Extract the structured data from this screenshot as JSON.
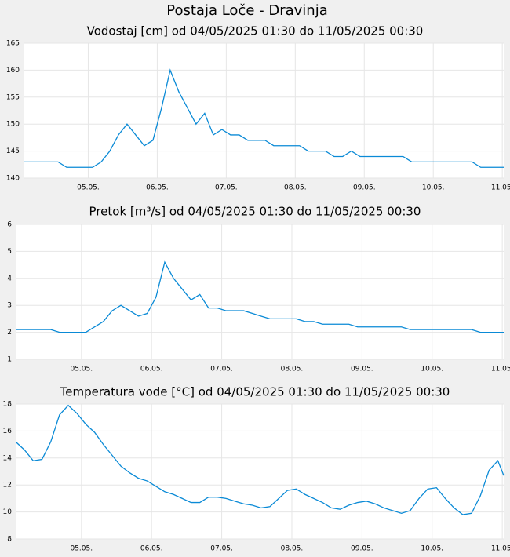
{
  "title": "Postaja Loče - Dravinja",
  "chart_data": [
    {
      "type": "line",
      "title": "Vodostaj [cm] od 04/05/2025 01:30 do 11/05/2025 00:30",
      "color": "#0a8ad6",
      "grid": true,
      "x": [
        "04.05. 01:30",
        "04.05. 04:30",
        "04.05. 07:30",
        "04.05. 10:30",
        "04.05. 13:30",
        "04.05. 16:30",
        "04.05. 19:30",
        "04.05. 22:30",
        "05.05. 01:30",
        "05.05. 04:30",
        "05.05. 07:30",
        "05.05. 10:30",
        "05.05. 13:30",
        "05.05. 16:30",
        "05.05. 19:30",
        "05.05. 22:30",
        "06.05. 01:30",
        "06.05. 04:30",
        "06.05. 07:30",
        "06.05. 10:30",
        "06.05. 13:30",
        "06.05. 16:30",
        "06.05. 19:30",
        "06.05. 22:30",
        "07.05. 01:30",
        "07.05. 04:30",
        "07.05. 07:30",
        "07.05. 10:30",
        "07.05. 13:30",
        "07.05. 16:30",
        "07.05. 19:30",
        "07.05. 22:30",
        "08.05. 01:30",
        "08.05. 04:30",
        "08.05. 07:30",
        "08.05. 10:30",
        "08.05. 13:30",
        "08.05. 16:30",
        "08.05. 19:30",
        "08.05. 22:30",
        "09.05. 01:30",
        "09.05. 04:30",
        "09.05. 07:30",
        "09.05. 10:30",
        "09.05. 13:30",
        "09.05. 16:30",
        "09.05. 19:30",
        "09.05. 22:30",
        "10.05. 01:30",
        "10.05. 04:30",
        "10.05. 07:30",
        "10.05. 10:30",
        "10.05. 13:30",
        "10.05. 16:30",
        "10.05. 19:30",
        "10.05. 22:30",
        "11.05. 00:30"
      ],
      "values": [
        143,
        143,
        143,
        143,
        143,
        142,
        142,
        142,
        142,
        143,
        145,
        148,
        150,
        148,
        146,
        147,
        153,
        160,
        156,
        153,
        150,
        152,
        148,
        149,
        148,
        148,
        147,
        147,
        147,
        146,
        146,
        146,
        146,
        145,
        145,
        145,
        144,
        144,
        145,
        144,
        144,
        144,
        144,
        144,
        144,
        143,
        143,
        143,
        143,
        143,
        143,
        143,
        143,
        142,
        142,
        142,
        142
      ],
      "xlim": [
        "04.05. 01:30",
        "11.05. 00:30"
      ],
      "xticks": [
        {
          "value": "05.05. 00:00",
          "label": "05.05."
        },
        {
          "value": "06.05. 00:00",
          "label": "06.05."
        },
        {
          "value": "07.05. 00:00",
          "label": "07.05."
        },
        {
          "value": "08.05. 00:00",
          "label": "08.05."
        },
        {
          "value": "09.05. 00:00",
          "label": "09.05."
        },
        {
          "value": "10.05. 00:00",
          "label": "10.05."
        },
        {
          "value": "11.05. 00:00",
          "label": "11.05."
        }
      ],
      "ylim": [
        140,
        165
      ],
      "yticks": [
        140,
        145,
        150,
        155,
        160,
        165
      ]
    },
    {
      "type": "line",
      "title": "Pretok [m³/s] od 04/05/2025 01:30 do 11/05/2025 00:30",
      "color": "#0a8ad6",
      "grid": true,
      "x": [
        "04.05. 01:30",
        "04.05. 04:30",
        "04.05. 07:30",
        "04.05. 10:30",
        "04.05. 13:30",
        "04.05. 16:30",
        "04.05. 19:30",
        "04.05. 22:30",
        "05.05. 01:30",
        "05.05. 04:30",
        "05.05. 07:30",
        "05.05. 10:30",
        "05.05. 13:30",
        "05.05. 16:30",
        "05.05. 19:30",
        "05.05. 22:30",
        "06.05. 01:30",
        "06.05. 04:30",
        "06.05. 07:30",
        "06.05. 10:30",
        "06.05. 13:30",
        "06.05. 16:30",
        "06.05. 19:30",
        "06.05. 22:30",
        "07.05. 01:30",
        "07.05. 04:30",
        "07.05. 07:30",
        "07.05. 10:30",
        "07.05. 13:30",
        "07.05. 16:30",
        "07.05. 19:30",
        "07.05. 22:30",
        "08.05. 01:30",
        "08.05. 04:30",
        "08.05. 07:30",
        "08.05. 10:30",
        "08.05. 13:30",
        "08.05. 16:30",
        "08.05. 19:30",
        "08.05. 22:30",
        "09.05. 01:30",
        "09.05. 04:30",
        "09.05. 07:30",
        "09.05. 10:30",
        "09.05. 13:30",
        "09.05. 16:30",
        "09.05. 19:30",
        "09.05. 22:30",
        "10.05. 01:30",
        "10.05. 04:30",
        "10.05. 07:30",
        "10.05. 10:30",
        "10.05. 13:30",
        "10.05. 16:30",
        "10.05. 19:30",
        "10.05. 22:30",
        "11.05. 00:30"
      ],
      "values": [
        2.1,
        2.1,
        2.1,
        2.1,
        2.1,
        2.0,
        2.0,
        2.0,
        2.0,
        2.2,
        2.4,
        2.8,
        3.0,
        2.8,
        2.6,
        2.7,
        3.3,
        4.6,
        4.0,
        3.6,
        3.2,
        3.4,
        2.9,
        2.9,
        2.8,
        2.8,
        2.8,
        2.7,
        2.6,
        2.5,
        2.5,
        2.5,
        2.5,
        2.4,
        2.4,
        2.3,
        2.3,
        2.3,
        2.3,
        2.2,
        2.2,
        2.2,
        2.2,
        2.2,
        2.2,
        2.1,
        2.1,
        2.1,
        2.1,
        2.1,
        2.1,
        2.1,
        2.1,
        2.0,
        2.0,
        2.0,
        2.0
      ],
      "xlim": [
        "04.05. 01:30",
        "11.05. 00:30"
      ],
      "xticks": [
        {
          "value": "05.05. 00:00",
          "label": "05.05."
        },
        {
          "value": "06.05. 00:00",
          "label": "06.05."
        },
        {
          "value": "07.05. 00:00",
          "label": "07.05."
        },
        {
          "value": "08.05. 00:00",
          "label": "08.05."
        },
        {
          "value": "09.05. 00:00",
          "label": "09.05."
        },
        {
          "value": "10.05. 00:00",
          "label": "10.05."
        },
        {
          "value": "11.05. 00:00",
          "label": "11.05."
        }
      ],
      "ylim": [
        1,
        6
      ],
      "yticks": [
        1,
        2,
        3,
        4,
        5,
        6
      ]
    },
    {
      "type": "line",
      "title": "Temperatura vode [°C] od 04/05/2025 01:30 do 11/05/2025 00:30",
      "color": "#0a8ad6",
      "grid": true,
      "x": [
        "04.05. 01:30",
        "04.05. 04:30",
        "04.05. 07:30",
        "04.05. 10:30",
        "04.05. 13:30",
        "04.05. 16:30",
        "04.05. 19:30",
        "04.05. 22:30",
        "05.05. 01:30",
        "05.05. 04:30",
        "05.05. 07:30",
        "05.05. 10:30",
        "05.05. 13:30",
        "05.05. 16:30",
        "05.05. 19:30",
        "05.05. 22:30",
        "06.05. 01:30",
        "06.05. 04:30",
        "06.05. 07:30",
        "06.05. 10:30",
        "06.05. 13:30",
        "06.05. 16:30",
        "06.05. 19:30",
        "06.05. 22:30",
        "07.05. 01:30",
        "07.05. 04:30",
        "07.05. 07:30",
        "07.05. 10:30",
        "07.05. 13:30",
        "07.05. 16:30",
        "07.05. 19:30",
        "07.05. 22:30",
        "08.05. 01:30",
        "08.05. 04:30",
        "08.05. 07:30",
        "08.05. 10:30",
        "08.05. 13:30",
        "08.05. 16:30",
        "08.05. 19:30",
        "08.05. 22:30",
        "09.05. 01:30",
        "09.05. 04:30",
        "09.05. 07:30",
        "09.05. 10:30",
        "09.05. 13:30",
        "09.05. 16:30",
        "09.05. 19:30",
        "09.05. 22:30",
        "10.05. 01:30",
        "10.05. 04:30",
        "10.05. 07:30",
        "10.05. 10:30",
        "10.05. 13:30",
        "10.05. 16:30",
        "10.05. 19:30",
        "10.05. 22:30",
        "11.05. 00:30"
      ],
      "values": [
        15.2,
        14.6,
        13.8,
        13.9,
        15.2,
        17.2,
        17.9,
        17.3,
        16.5,
        15.9,
        15.0,
        14.2,
        13.4,
        12.9,
        12.5,
        12.3,
        11.9,
        11.5,
        11.3,
        11.0,
        10.7,
        10.7,
        11.1,
        11.1,
        11.0,
        10.8,
        10.6,
        10.5,
        10.3,
        10.4,
        11.0,
        11.6,
        11.7,
        11.3,
        11.0,
        10.7,
        10.3,
        10.2,
        10.5,
        10.7,
        10.8,
        10.6,
        10.3,
        10.1,
        9.9,
        10.1,
        11.0,
        11.7,
        11.8,
        11.0,
        10.3,
        9.8,
        9.9,
        11.2,
        13.1,
        13.8,
        12.7
      ],
      "xlim": [
        "04.05. 01:30",
        "11.05. 00:30"
      ],
      "xticks": [
        {
          "value": "05.05. 00:00",
          "label": "05.05."
        },
        {
          "value": "06.05. 00:00",
          "label": "06.05."
        },
        {
          "value": "07.05. 00:00",
          "label": "07.05."
        },
        {
          "value": "08.05. 00:00",
          "label": "08.05."
        },
        {
          "value": "09.05. 00:00",
          "label": "09.05."
        },
        {
          "value": "10.05. 00:00",
          "label": "10.05."
        },
        {
          "value": "11.05. 00:00",
          "label": "11.05."
        }
      ],
      "ylim": [
        8,
        18
      ],
      "yticks": [
        8,
        10,
        12,
        14,
        16,
        18
      ]
    }
  ]
}
